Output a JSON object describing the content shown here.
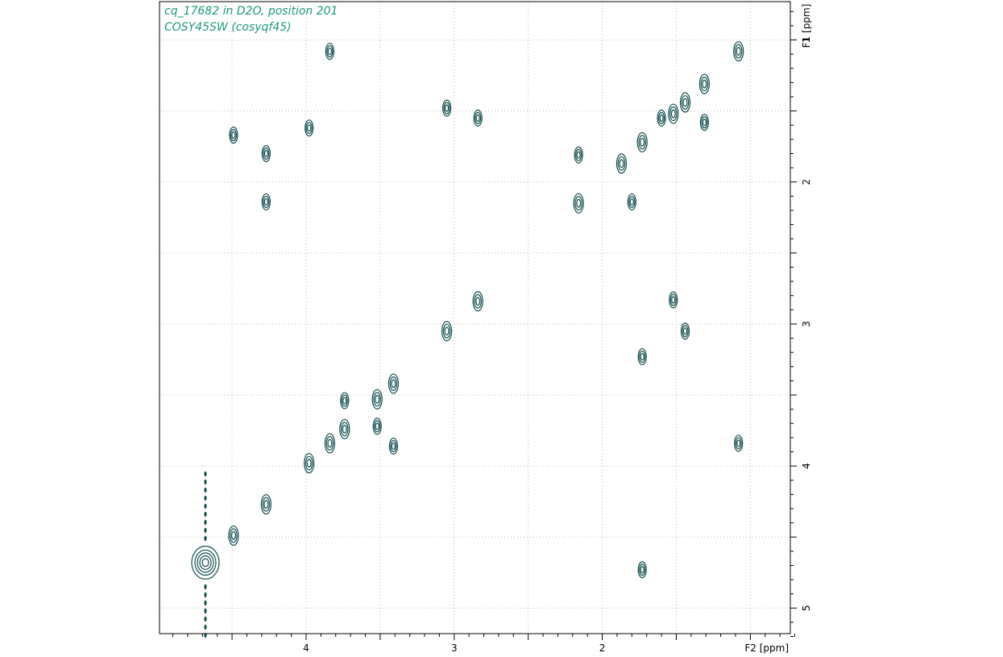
{
  "title_lines": [
    "cq_17682 in D2O, position 201",
    "COSY45SW (cosyqf45)"
  ],
  "colors": {
    "contour": "#0f4d4d",
    "grid": "#b8b8b8",
    "title": "#1a9a7c",
    "axis": "#000000"
  },
  "chart_data": {
    "type": "heatmap",
    "subtype": "2D NMR COSY contour plot",
    "xlabel": "F2 [ppm]",
    "ylabel": "F1 [ppm]",
    "xlim": [
      4.99,
      0.73
    ],
    "ylim": [
      0.73,
      5.18
    ],
    "x_axis_reversed": true,
    "y_axis_increasing_downward": true,
    "x_tick_labels": [
      4,
      3,
      2
    ],
    "y_tick_labels": [
      1,
      2,
      3,
      4,
      5
    ],
    "grid": "dotted",
    "peaks": [
      {
        "f2": 4.68,
        "f1": 4.68,
        "kind": "solvent"
      },
      {
        "f2": 4.49,
        "f1": 1.67
      },
      {
        "f2": 4.49,
        "f1": 4.49
      },
      {
        "f2": 4.27,
        "f1": 1.8
      },
      {
        "f2": 4.27,
        "f1": 2.14
      },
      {
        "f2": 4.27,
        "f1": 4.27
      },
      {
        "f2": 3.98,
        "f1": 1.62
      },
      {
        "f2": 3.98,
        "f1": 3.98
      },
      {
        "f2": 3.84,
        "f1": 1.08
      },
      {
        "f2": 3.84,
        "f1": 3.84
      },
      {
        "f2": 3.74,
        "f1": 3.54
      },
      {
        "f2": 3.74,
        "f1": 3.74
      },
      {
        "f2": 3.52,
        "f1": 3.53
      },
      {
        "f2": 3.52,
        "f1": 3.72
      },
      {
        "f2": 3.41,
        "f1": 3.42
      },
      {
        "f2": 3.41,
        "f1": 3.86
      },
      {
        "f2": 3.05,
        "f1": 1.48
      },
      {
        "f2": 3.05,
        "f1": 3.05
      },
      {
        "f2": 2.84,
        "f1": 1.55
      },
      {
        "f2": 2.84,
        "f1": 2.84
      },
      {
        "f2": 2.16,
        "f1": 1.81
      },
      {
        "f2": 2.16,
        "f1": 2.15
      },
      {
        "f2": 1.8,
        "f1": 2.14
      },
      {
        "f2": 1.73,
        "f1": 1.72
      },
      {
        "f2": 1.73,
        "f1": 3.23
      },
      {
        "f2": 1.73,
        "f1": 4.73
      },
      {
        "f2": 1.87,
        "f1": 1.87
      },
      {
        "f2": 1.6,
        "f1": 1.55
      },
      {
        "f2": 1.52,
        "f1": 1.52
      },
      {
        "f2": 1.52,
        "f1": 2.83
      },
      {
        "f2": 1.44,
        "f1": 1.44
      },
      {
        "f2": 1.44,
        "f1": 3.05
      },
      {
        "f2": 1.31,
        "f1": 1.31
      },
      {
        "f2": 1.31,
        "f1": 1.58
      },
      {
        "f2": 1.08,
        "f1": 1.08
      },
      {
        "f2": 1.08,
        "f1": 3.84
      }
    ]
  }
}
